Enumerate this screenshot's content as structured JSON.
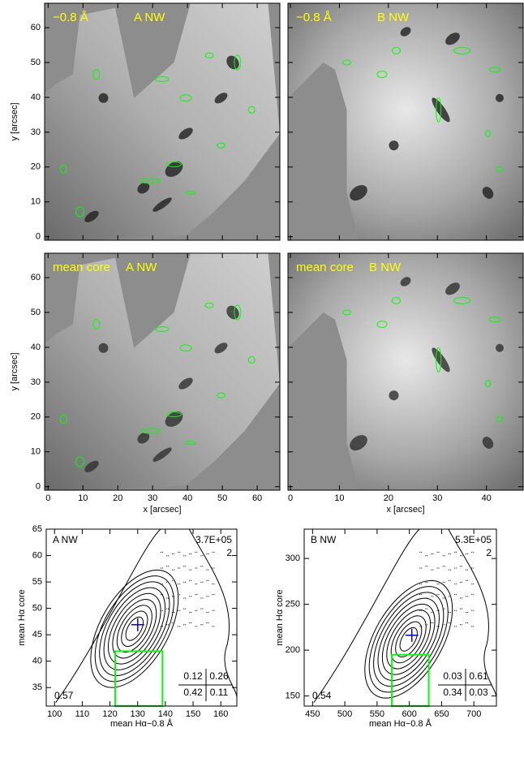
{
  "image_axes": {
    "x_label": "x  [arcsec]",
    "y_label": "y  [arcsec]",
    "left_xticks": [
      0,
      10,
      20,
      30,
      40,
      50,
      60
    ],
    "left_xlim": [
      -1,
      66.5
    ],
    "right_xticks": [
      0,
      10,
      20,
      30,
      40
    ],
    "right_xlim": [
      -0.5,
      47.5
    ],
    "yticks": [
      0,
      10,
      20,
      30,
      40,
      50,
      60
    ],
    "ylim": [
      -1,
      67
    ]
  },
  "image_panels": [
    {
      "line": "−0.8 Å",
      "region": "A  NW"
    },
    {
      "line": "−0.8 Å",
      "region": "B  NW"
    },
    {
      "line": "mean core",
      "region": "A  NW"
    },
    {
      "line": "mean core",
      "region": "B  NW"
    }
  ],
  "scatter_panels": [
    {
      "region": "A  NW",
      "count": "3.7E+05",
      "level": "2",
      "corner": 0.57,
      "quadrants": [
        [
          0.12,
          0.26
        ],
        [
          0.42,
          0.11
        ]
      ],
      "x_label": "mean Hα−0.8 Å",
      "y_label": "mean Hα core",
      "xlim": [
        97,
        165.8
      ],
      "xticks": [
        100,
        110,
        120,
        130,
        140,
        150,
        160
      ],
      "ylim": [
        31.5,
        65
      ],
      "yticks": [
        35,
        40,
        45,
        50,
        55,
        60,
        65
      ]
    },
    {
      "region": "B  NW",
      "count": "5.3E+05",
      "level": "2",
      "corner": 0.54,
      "quadrants": [
        [
          0.03,
          0.61
        ],
        [
          0.34,
          0.03
        ]
      ],
      "x_label": "mean Hα−0.8 Å",
      "y_label": "mean Hα core",
      "xlim": [
        437,
        735
      ],
      "xticks": [
        450,
        500,
        550,
        600,
        650,
        700
      ],
      "ylim": [
        139,
        332
      ],
      "yticks": [
        150,
        200,
        250,
        300
      ]
    }
  ]
}
